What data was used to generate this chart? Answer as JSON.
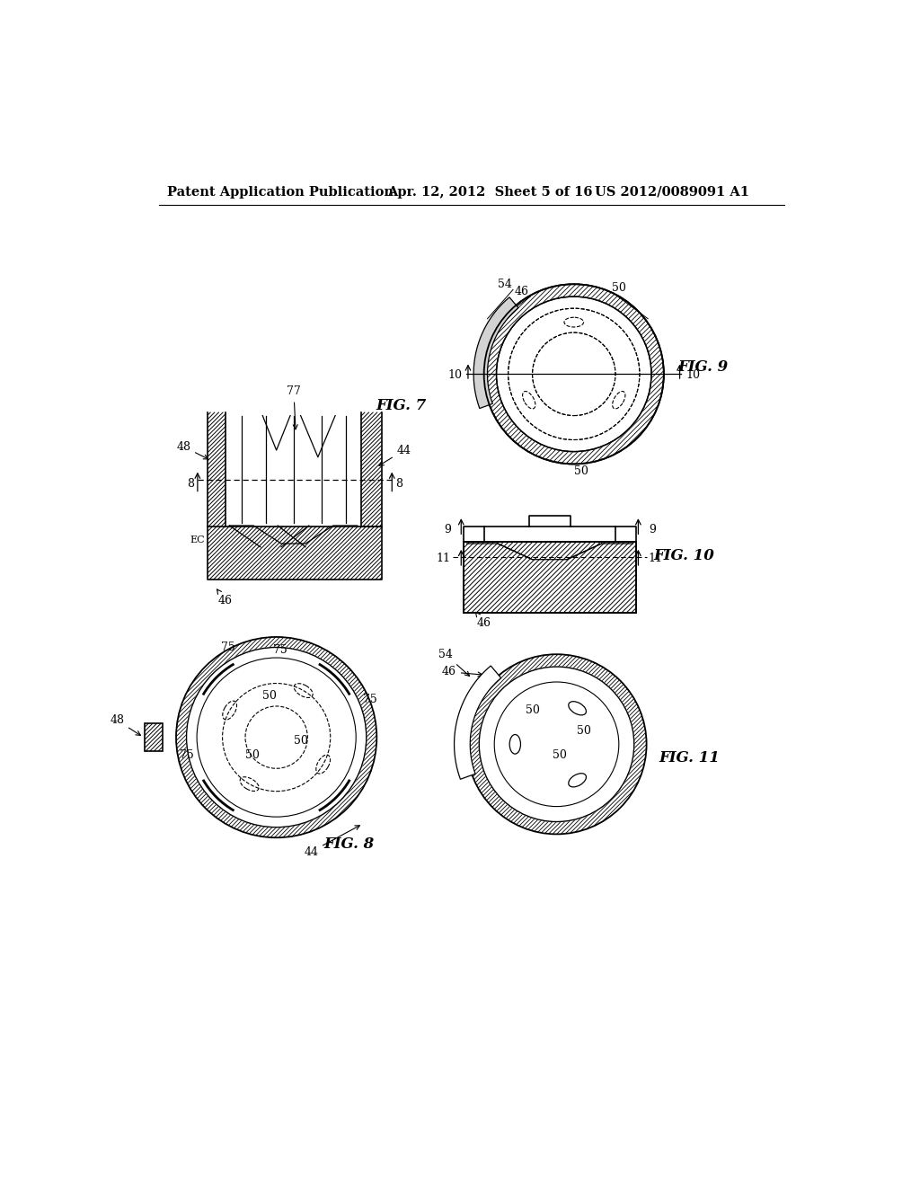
{
  "background_color": "#ffffff",
  "header_left": "Patent Application Publication",
  "header_center": "Apr. 12, 2012  Sheet 5 of 16",
  "header_right": "US 2012/0089091 A1",
  "fig7_label": "FIG. 7",
  "fig8_label": "FIG. 8",
  "fig9_label": "FIG. 9",
  "fig10_label": "FIG. 10",
  "fig11_label": "FIG. 11"
}
